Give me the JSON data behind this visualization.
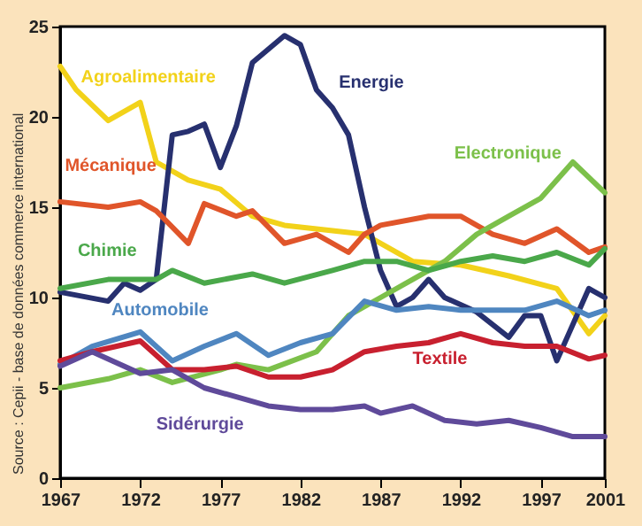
{
  "chart_data": {
    "type": "line",
    "xlim": [
      1967,
      2001
    ],
    "xticks": [
      1967,
      1972,
      1977,
      1982,
      1987,
      1992,
      1997,
      2001
    ],
    "ylim": [
      0,
      25
    ],
    "yticks": [
      0,
      5,
      10,
      15,
      20,
      25
    ],
    "grid": false,
    "marker": "none",
    "line_style": "solid",
    "annotations": [
      "Source : Cepii - base de données commerce international"
    ],
    "series": [
      {
        "name": "Agroalimentaire",
        "color": "#f2d21a",
        "x": [
          1967,
          1968,
          1970,
          1972,
          1973,
          1975,
          1977,
          1979,
          1981,
          1983,
          1986,
          1989,
          1992,
          1995,
          1998,
          2000,
          2001
        ],
        "values": [
          22.8,
          21.5,
          19.8,
          20.8,
          17.5,
          16.5,
          16,
          14.5,
          14,
          13.8,
          13.5,
          12,
          11.8,
          11.2,
          10.5,
          8,
          9
        ]
      },
      {
        "name": "Energie",
        "color": "#27306f",
        "x": [
          1967,
          1970,
          1971,
          1972,
          1973,
          1974,
          1975,
          1976,
          1977,
          1978,
          1979,
          1981,
          1982,
          1983,
          1984,
          1985,
          1986,
          1987,
          1988,
          1989,
          1990,
          1991,
          1993,
          1995,
          1996,
          1997,
          1998,
          2000,
          2001
        ],
        "values": [
          10.3,
          9.8,
          10.8,
          10.4,
          11,
          19,
          19.2,
          19.6,
          17.2,
          19.5,
          23,
          24.5,
          24,
          21.5,
          20.5,
          19,
          15,
          11.5,
          9.5,
          10,
          11,
          10,
          9.2,
          7.8,
          9,
          9,
          6.5,
          10.5,
          10
        ]
      },
      {
        "name": "Mécanique",
        "color": "#e0552a",
        "x": [
          1967,
          1970,
          1972,
          1973,
          1975,
          1976,
          1978,
          1979,
          1981,
          1983,
          1985,
          1986,
          1987,
          1990,
          1992,
          1994,
          1996,
          1998,
          2000,
          2001
        ],
        "values": [
          15.3,
          15,
          15.3,
          14.8,
          13,
          15.2,
          14.5,
          14.8,
          13,
          13.5,
          12.5,
          13.5,
          14,
          14.5,
          14.5,
          13.5,
          13,
          13.8,
          12.5,
          12.8
        ]
      },
      {
        "name": "Electronique",
        "color": "#7cc04a",
        "x": [
          1967,
          1970,
          1972,
          1974,
          1977,
          1978,
          1980,
          1983,
          1985,
          1987,
          1989,
          1991,
          1993,
          1995,
          1997,
          1999,
          2001
        ],
        "values": [
          5,
          5.5,
          6,
          5.3,
          6,
          6.3,
          6,
          7,
          9,
          10,
          11,
          12,
          13.5,
          14.5,
          15.5,
          17.5,
          15.8
        ]
      },
      {
        "name": "Chimie",
        "color": "#4aa84a",
        "x": [
          1967,
          1970,
          1973,
          1974,
          1976,
          1979,
          1981,
          1984,
          1986,
          1988,
          1990,
          1992,
          1994,
          1996,
          1998,
          2000,
          2001
        ],
        "values": [
          10.5,
          11,
          11,
          11.5,
          10.8,
          11.3,
          10.8,
          11.5,
          12,
          12,
          11.5,
          12,
          12.3,
          12,
          12.5,
          11.8,
          12.7
        ]
      },
      {
        "name": "Automobile",
        "color": "#4f86c0",
        "x": [
          1967,
          1969,
          1972,
          1974,
          1976,
          1978,
          1980,
          1982,
          1984,
          1986,
          1988,
          1990,
          1992,
          1994,
          1996,
          1998,
          2000,
          2001
        ],
        "values": [
          6.3,
          7.3,
          8.1,
          6.5,
          7.3,
          8,
          6.8,
          7.5,
          8,
          9.8,
          9.3,
          9.5,
          9.3,
          9.3,
          9.3,
          9.8,
          9,
          9.3
        ]
      },
      {
        "name": "Textile",
        "color": "#c8202f",
        "x": [
          1967,
          1969,
          1972,
          1974,
          1976,
          1978,
          1980,
          1982,
          1984,
          1986,
          1988,
          1990,
          1992,
          1994,
          1996,
          1998,
          2000,
          2001
        ],
        "values": [
          6.5,
          7,
          7.6,
          6,
          6,
          6.2,
          5.6,
          5.6,
          6,
          7,
          7.3,
          7.5,
          8,
          7.5,
          7.3,
          7.3,
          6.6,
          6.8
        ]
      },
      {
        "name": "Sidérurgie",
        "color": "#5f4a9a",
        "x": [
          1967,
          1969,
          1972,
          1974,
          1976,
          1978,
          1980,
          1982,
          1984,
          1986,
          1987,
          1989,
          1991,
          1993,
          1995,
          1997,
          1999,
          2001
        ],
        "values": [
          6.2,
          7,
          5.8,
          6,
          5,
          4.5,
          4,
          3.8,
          3.8,
          4,
          3.6,
          4,
          3.2,
          3,
          3.2,
          2.8,
          2.3,
          2.3
        ]
      }
    ]
  }
}
